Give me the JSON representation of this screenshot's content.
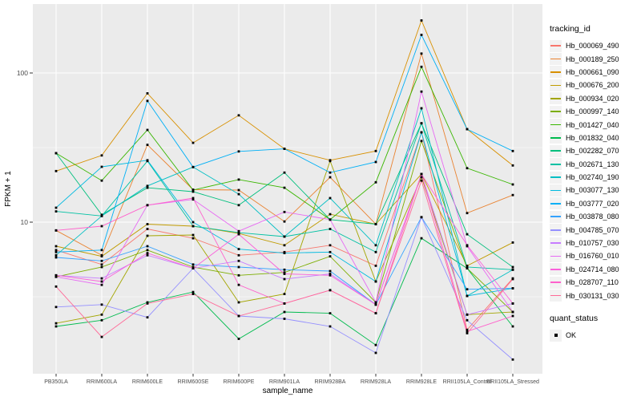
{
  "chart_data": {
    "type": "line",
    "title": "",
    "xlabel": "sample_name",
    "ylabel": "FPKM + 1",
    "x_categories": [
      "PB350LA",
      "RRIM600LA",
      "RRIM600LE",
      "RRIM600SE",
      "RRIM600PE",
      "RRIM901LA",
      "RRIM928BA",
      "RRIM928LA",
      "RRIM928LE",
      "RRII105LA_Control",
      "RRII105LA_Stressed"
    ],
    "y_scale": "log10",
    "ylim": [
      1,
      290
    ],
    "y_axis": {
      "ticks": [
        {
          "label": "100",
          "value": 100
        },
        {
          "label": "10",
          "value": 10
        }
      ],
      "minor": [
        31.623,
        3.1623
      ]
    },
    "grid": "on",
    "legend_position": "right",
    "legend_title": "tracking_id",
    "marker": {
      "shape": "square",
      "color": "#000000",
      "size": 2.8
    },
    "series": [
      {
        "name": "Hb_000069_490",
        "color": "#F8766D",
        "values": [
          6.5,
          5.2,
          9.0,
          7.8,
          6.0,
          6.3,
          7.0,
          5.1,
          40,
          1.9,
          4.2
        ]
      },
      {
        "name": "Hb_000189_250",
        "color": "#EA8331",
        "values": [
          8.8,
          6.0,
          33,
          16.5,
          16.4,
          10.1,
          20,
          9.7,
          135,
          11.5,
          15.2
        ]
      },
      {
        "name": "Hb_000661_090",
        "color": "#D89000",
        "values": [
          22,
          28,
          73,
          34,
          52,
          31,
          26,
          30,
          225,
          42,
          24
        ]
      },
      {
        "name": "Hb_000676_200",
        "color": "#C09B00",
        "values": [
          6.9,
          5.9,
          9.7,
          9.4,
          8.4,
          7.0,
          11.3,
          9.7,
          21,
          5.1,
          7.3
        ]
      },
      {
        "name": "Hb_000934_020",
        "color": "#A3A500",
        "values": [
          2.1,
          2.4,
          8.1,
          8.2,
          2.9,
          3.3,
          25.7,
          4.0,
          20,
          2.4,
          2.5
        ]
      },
      {
        "name": "Hb_000997_140",
        "color": "#7CAE00",
        "values": [
          4.3,
          5.0,
          6.5,
          5.0,
          4.4,
          4.6,
          5.9,
          2.9,
          35,
          4.9,
          2.5
        ]
      },
      {
        "name": "Hb_001427_040",
        "color": "#39B600",
        "values": [
          29,
          19,
          41.5,
          16.4,
          19.3,
          17,
          10.4,
          18.5,
          110,
          23,
          17.9
        ]
      },
      {
        "name": "Hb_001832_040",
        "color": "#00BB4E",
        "values": [
          2.0,
          2.2,
          2.9,
          3.4,
          1.65,
          2.5,
          2.45,
          1.5,
          7.8,
          4.9,
          2.0
        ]
      },
      {
        "name": "Hb_002282_070",
        "color": "#00BF7D",
        "values": [
          29,
          11.2,
          17,
          16,
          13,
          21.5,
          10.4,
          9.7,
          46,
          8.3,
          5.0
        ]
      },
      {
        "name": "Hb_002671_130",
        "color": "#00C1A3",
        "values": [
          11.8,
          11.0,
          25.7,
          9.4,
          8.5,
          8.0,
          9.0,
          6.3,
          46,
          5.0,
          4.8
        ]
      },
      {
        "name": "Hb_002740_190",
        "color": "#00BFC4",
        "values": [
          6.0,
          11.0,
          17.5,
          23.4,
          15.4,
          8.0,
          14.5,
          7.0,
          58,
          3.2,
          4.8
        ]
      },
      {
        "name": "Hb_003077_130",
        "color": "#00BAE0",
        "values": [
          12.5,
          23.5,
          26,
          10,
          6.6,
          6.2,
          6.3,
          4.0,
          40,
          3.2,
          3.6
        ]
      },
      {
        "name": "Hb_003777_020",
        "color": "#00B0F6",
        "values": [
          6.3,
          6.5,
          65,
          23.4,
          29.8,
          31,
          21.5,
          25.3,
          180,
          42,
          30
        ]
      },
      {
        "name": "Hb_003878_080",
        "color": "#35A2FF",
        "values": [
          5.8,
          5.5,
          6.9,
          5.2,
          5.0,
          4.8,
          4.7,
          2.8,
          10.8,
          3.55,
          3.6
        ]
      },
      {
        "name": "Hb_004785_070",
        "color": "#9590FF",
        "values": [
          2.7,
          2.8,
          2.3,
          4.9,
          2.35,
          2.25,
          2.0,
          1.33,
          10.8,
          2.2,
          1.2
        ]
      },
      {
        "name": "Hb_010757_030",
        "color": "#C77CFF",
        "values": [
          4.4,
          4.2,
          6.0,
          4.9,
          5.5,
          4.15,
          4.5,
          2.8,
          21,
          2.4,
          2.85
        ]
      },
      {
        "name": "Hb_016760_010",
        "color": "#E76BF3",
        "values": [
          4.3,
          3.8,
          13,
          14.2,
          8.7,
          11.7,
          10.4,
          2.9,
          75,
          6.9,
          2.5
        ]
      },
      {
        "name": "Hb_024714_080",
        "color": "#FA62DB",
        "values": [
          4.4,
          4.0,
          6.2,
          4.9,
          8.3,
          4.5,
          4.4,
          2.8,
          21,
          7.0,
          2.85
        ]
      },
      {
        "name": "Hb_028707_110",
        "color": "#FF61CC",
        "values": [
          8.8,
          9.4,
          13,
          14.5,
          3.8,
          2.85,
          3.5,
          2.45,
          21,
          1.85,
          2.35
        ]
      },
      {
        "name": "Hb_030131_030",
        "color": "#FF6A98",
        "values": [
          3.7,
          1.7,
          2.85,
          3.3,
          2.35,
          2.85,
          3.5,
          2.45,
          19,
          1.8,
          4.15
        ]
      }
    ],
    "quant_legend": {
      "title": "quant_status",
      "items": [
        {
          "label": "OK",
          "shape": "square",
          "color": "#000000"
        }
      ]
    }
  },
  "style": {
    "panel_bg": "#EBEBEB",
    "grid_color": "#FFFFFF",
    "tick_mark_color": "#333333",
    "tick_label_color": "#4D4D4D",
    "axis_title_color": "#000000",
    "legend_key_bg": "#F2F2F2"
  }
}
